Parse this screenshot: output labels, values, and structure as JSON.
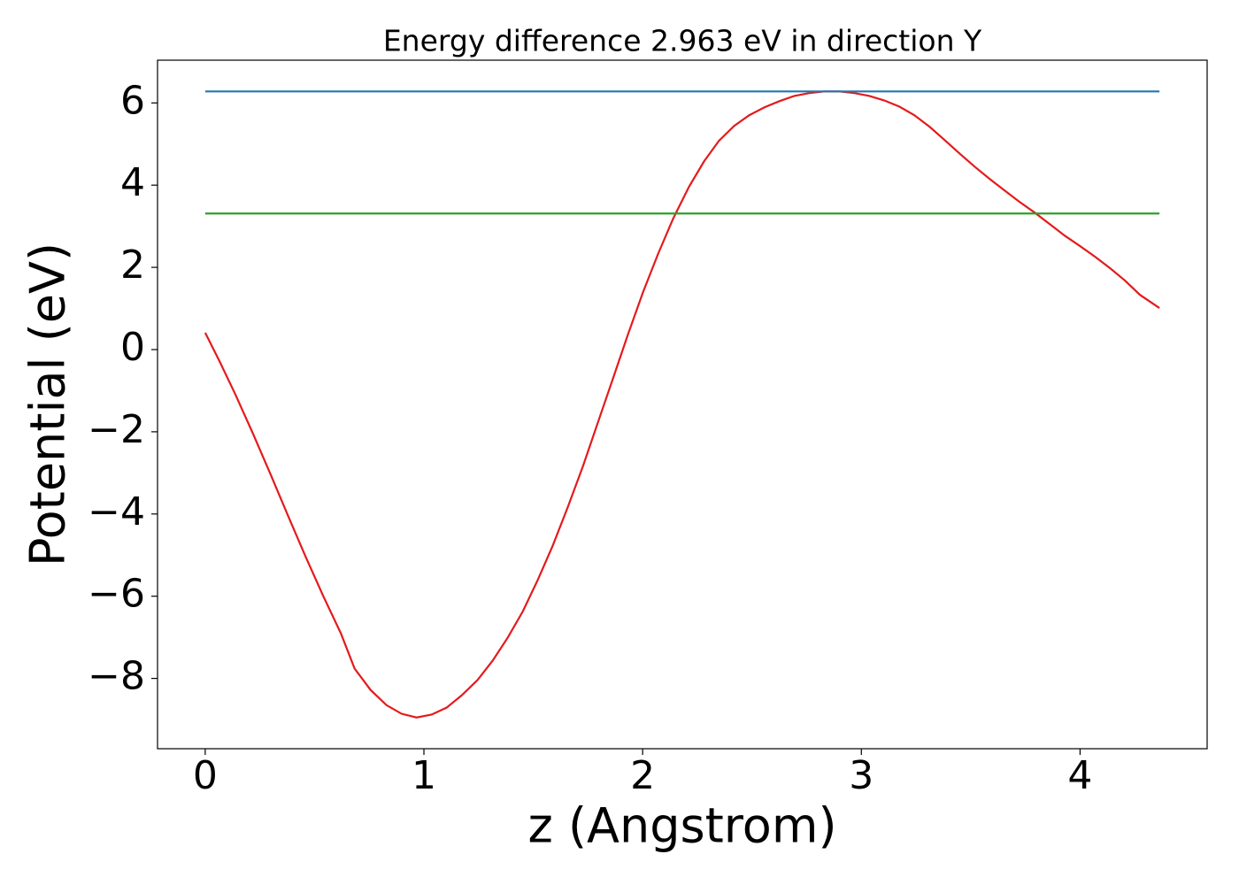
{
  "chart_data": {
    "type": "line",
    "title": "Energy difference 2.963 eV in direction Y",
    "xlabel": "z (Angstrom)",
    "ylabel": "Potential (eV)",
    "xlim": [
      -0.218,
      4.581
    ],
    "ylim": [
      -9.71,
      7.04
    ],
    "xticks": [
      0,
      1,
      2,
      3,
      4
    ],
    "yticks": [
      {
        "value": -8,
        "label": "−8"
      },
      {
        "value": -6,
        "label": "−6"
      },
      {
        "value": -4,
        "label": "−4"
      },
      {
        "value": -2,
        "label": "−2"
      },
      0,
      2,
      4,
      6
    ],
    "grid": false,
    "series": [
      {
        "color": "#e41a1c",
        "x": [
          0,
          0.065,
          0.137,
          0.218,
          0.3,
          0.38,
          0.46,
          0.54,
          0.62,
          0.683,
          0.756,
          0.829,
          0.898,
          0.966,
          1.035,
          1.104,
          1.173,
          1.245,
          1.314,
          1.383,
          1.452,
          1.52,
          1.589,
          1.658,
          1.727,
          1.795,
          1.864,
          1.933,
          2.002,
          2.07,
          2.139,
          2.212,
          2.281,
          2.349,
          2.418,
          2.487,
          2.556,
          2.624,
          2.693,
          2.762,
          2.831,
          2.9,
          2.968,
          3.037,
          3.105,
          3.174,
          3.243,
          3.312,
          3.38,
          3.449,
          3.518,
          3.587,
          3.655,
          3.724,
          3.793,
          3.862,
          3.93,
          3.999,
          4.068,
          4.137,
          4.205,
          4.274,
          4.363
        ],
        "values": [
          0.41,
          -0.28,
          -1.08,
          -2.04,
          -3.05,
          -4.06,
          -5.05,
          -6.0,
          -6.9,
          -7.76,
          -8.28,
          -8.65,
          -8.86,
          -8.95,
          -8.88,
          -8.71,
          -8.41,
          -8.04,
          -7.57,
          -7.01,
          -6.37,
          -5.61,
          -4.77,
          -3.83,
          -2.84,
          -1.78,
          -0.71,
          0.37,
          1.4,
          2.32,
          3.18,
          3.96,
          4.58,
          5.08,
          5.44,
          5.7,
          5.89,
          6.04,
          6.17,
          6.24,
          6.28,
          6.28,
          6.24,
          6.17,
          6.06,
          5.91,
          5.7,
          5.42,
          5.1,
          4.77,
          4.45,
          4.15,
          3.87,
          3.59,
          3.33,
          3.05,
          2.77,
          2.52,
          2.26,
          1.98,
          1.68,
          1.33,
          1.01
        ]
      },
      {
        "color": "#1f77b4",
        "x": [
          0,
          4.363
        ],
        "values": [
          6.28,
          6.28
        ]
      },
      {
        "color": "#2ca02c",
        "x": [
          0,
          4.363
        ],
        "values": [
          3.31,
          3.31
        ]
      }
    ]
  }
}
